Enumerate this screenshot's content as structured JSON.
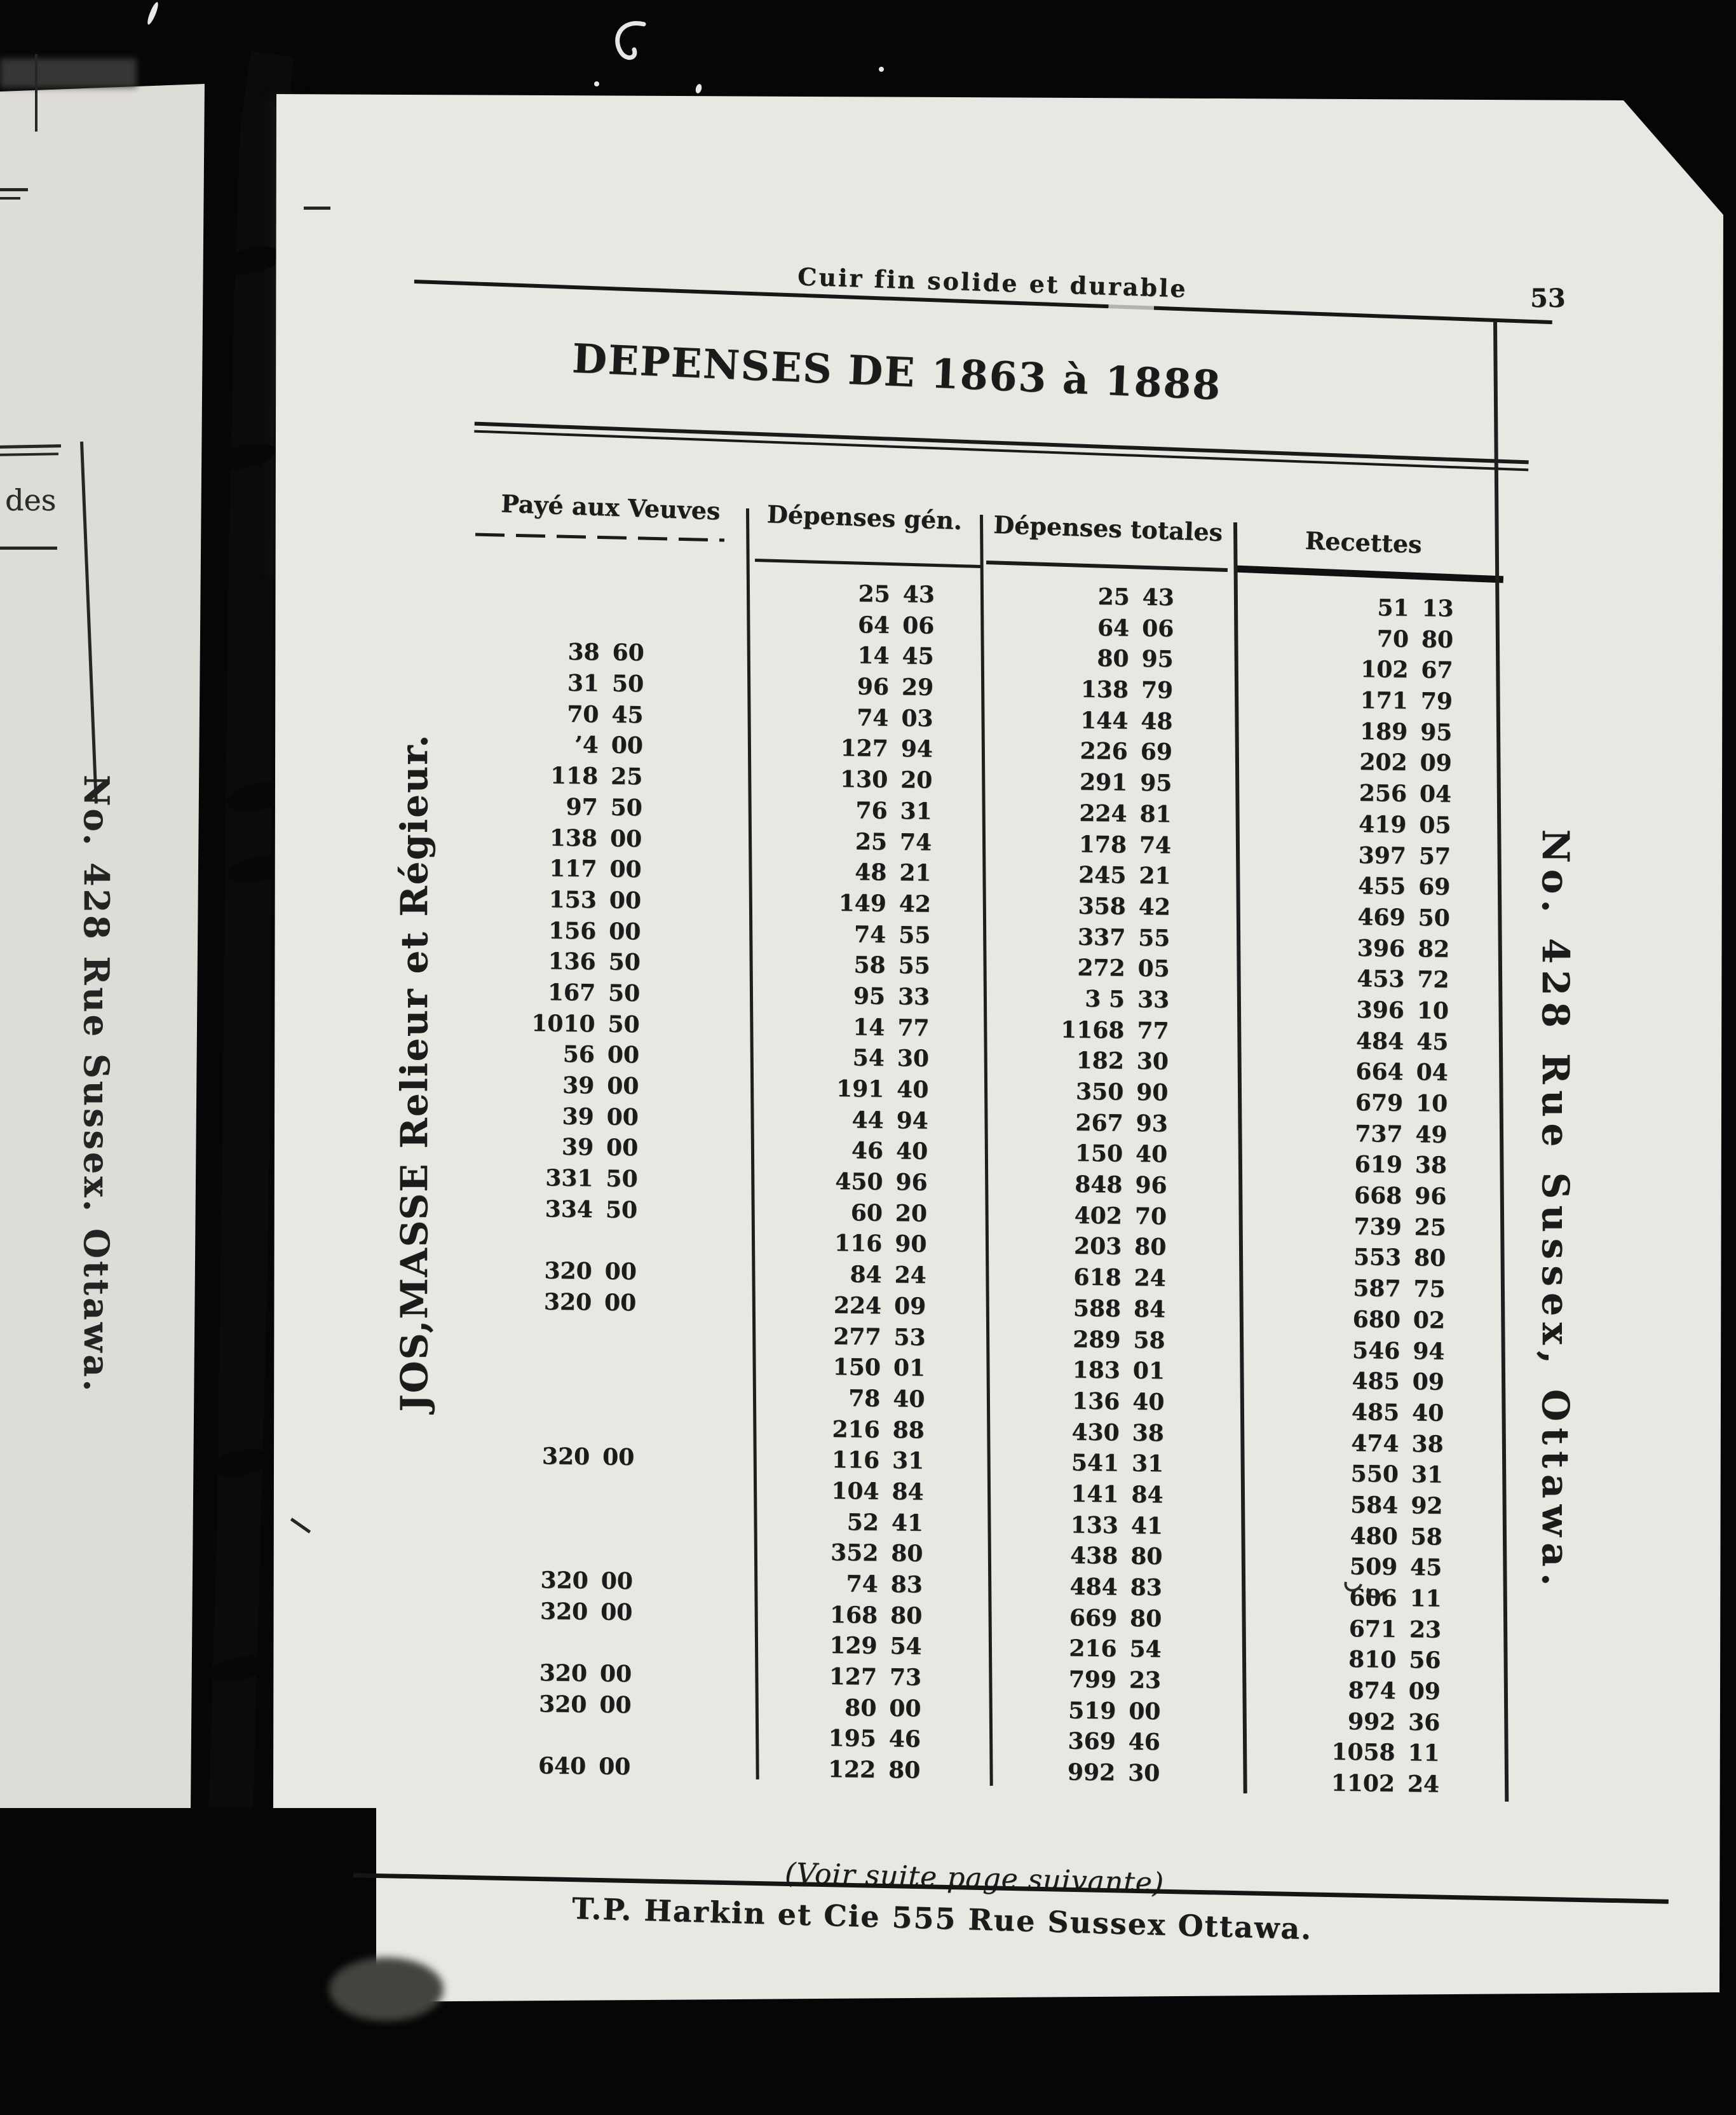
{
  "colors": {
    "paper": "#e9e7e1",
    "paper_left": "#dedcd6",
    "ink": "#1b1b1b",
    "background": "#060606"
  },
  "header": {
    "slogan": "Cuir fin solide et durable",
    "page_number": "53"
  },
  "title": "DEPENSES DE 1863 à 1888",
  "table": {
    "columns": [
      "Payé aux Veuves",
      "Dépenses gén.",
      "Dépenses totales",
      "Recettes"
    ],
    "rows": [
      {
        "paye": "",
        "gen": "25 43",
        "tot": "25 43",
        "rec": "51 13"
      },
      {
        "paye": "",
        "gen": "64 06",
        "tot": "64 06",
        "rec": "70 80"
      },
      {
        "paye": "38 60",
        "gen": "14 45",
        "tot": "80 95",
        "rec": "102 67"
      },
      {
        "paye": "31 50",
        "gen": "96 29",
        "tot": "138 79",
        "rec": "171 79"
      },
      {
        "paye": "70 45",
        "gen": "74 03",
        "tot": "144 48",
        "rec": "189 95"
      },
      {
        "paye": "’4 00",
        "gen": "127 94",
        "tot": "226 69",
        "rec": "202 09"
      },
      {
        "paye": "118 25",
        "gen": "130 20",
        "tot": "291 95",
        "rec": "256 04"
      },
      {
        "paye": "97 50",
        "gen": "76 31",
        "tot": "224 81",
        "rec": "419 05"
      },
      {
        "paye": "138 00",
        "gen": "25 74",
        "tot": "178 74",
        "rec": "397 57"
      },
      {
        "paye": "117 00",
        "gen": "48 21",
        "tot": "245 21",
        "rec": "455 69"
      },
      {
        "paye": "153 00",
        "gen": "149 42",
        "tot": "358 42",
        "rec": "469 50"
      },
      {
        "paye": "156 00",
        "gen": "74 55",
        "tot": "337 55",
        "rec": "396 82"
      },
      {
        "paye": "136 50",
        "gen": "58 55",
        "tot": "272 05",
        "rec": "453 72"
      },
      {
        "paye": "167 50",
        "gen": "95 33",
        "tot": "3 5 33",
        "rec": "396 10"
      },
      {
        "paye": "1010 50",
        "gen": "14 77",
        "tot": "1168 77",
        "rec": "484 45"
      },
      {
        "paye": "56 00",
        "gen": "54 30",
        "tot": "182 30",
        "rec": "664 04"
      },
      {
        "paye": "39 00",
        "gen": "191 40",
        "tot": "350 90",
        "rec": "679 10"
      },
      {
        "paye": "39 00",
        "gen": "44 94",
        "tot": "267 93",
        "rec": "737 49"
      },
      {
        "paye": "39 00",
        "gen": "46 40",
        "tot": "150 40",
        "rec": "619 38"
      },
      {
        "paye": "331 50",
        "gen": "450 96",
        "tot": "848 96",
        "rec": "668 96"
      },
      {
        "paye": "334 50",
        "gen": "60 20",
        "tot": "402 70",
        "rec": "739 25"
      },
      {
        "paye": "",
        "gen": "116 90",
        "tot": "203 80",
        "rec": "553 80"
      },
      {
        "paye": "320 00",
        "gen": "84 24",
        "tot": "618 24",
        "rec": "587 75"
      },
      {
        "paye": "320 00",
        "gen": "224 09",
        "tot": "588 84",
        "rec": "680 02"
      },
      {
        "paye": "",
        "gen": "277 53",
        "tot": "289 58",
        "rec": "546 94"
      },
      {
        "paye": "",
        "gen": "150 01",
        "tot": "183 01",
        "rec": "485 09"
      },
      {
        "paye": "",
        "gen": "78 40",
        "tot": "136 40",
        "rec": "485 40"
      },
      {
        "paye": "",
        "gen": "216 88",
        "tot": "430 38",
        "rec": "474 38"
      },
      {
        "paye": "320 00",
        "gen": "116 31",
        "tot": "541 31",
        "rec": "550 31"
      },
      {
        "paye": "",
        "gen": "104 84",
        "tot": "141 84",
        "rec": "584 92"
      },
      {
        "paye": "",
        "gen": "52 41",
        "tot": "133 41",
        "rec": "480 58"
      },
      {
        "paye": "",
        "gen": "352 80",
        "tot": "438 80",
        "rec": "509 45"
      },
      {
        "paye": "320 00",
        "gen": "74 83",
        "tot": "484 83",
        "rec": "606 11"
      },
      {
        "paye": "320 00",
        "gen": "168 80",
        "tot": "669 80",
        "rec": "671 23"
      },
      {
        "paye": "",
        "gen": "129 54",
        "tot": "216 54",
        "rec": "810 56"
      },
      {
        "paye": "320 00",
        "gen": "127 73",
        "tot": "799 23",
        "rec": "874 09"
      },
      {
        "paye": "320 00",
        "gen": "80 00",
        "tot": "519 00",
        "rec": "992 36"
      },
      {
        "paye": "",
        "gen": "195 46",
        "tot": "369 46",
        "rec": "1058 11"
      },
      {
        "paye": "640 00",
        "gen": "122 80",
        "tot": "992 30",
        "rec": "1102 24"
      }
    ]
  },
  "margin_notes": {
    "left_page_fragment": "des",
    "left_vertical": "No. 428 Rue Sussex. Ottawa.",
    "binder_vertical": "JOS,MASSE Relieur et Régieur.",
    "right_vertical": "No. 428 Rue Sussex, Ottawa."
  },
  "footer": {
    "note": "(Voir suite page suivante)",
    "ad": "T.P. Harkin et Cie 555 Rue Sussex  Ottawa."
  }
}
